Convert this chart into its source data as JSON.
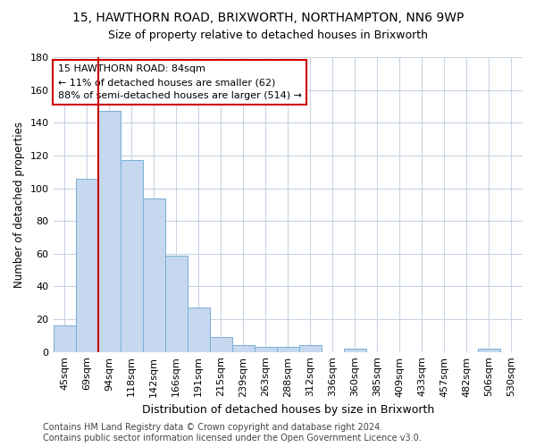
{
  "title1": "15, HAWTHORN ROAD, BRIXWORTH, NORTHAMPTON, NN6 9WP",
  "title2": "Size of property relative to detached houses in Brixworth",
  "xlabel": "Distribution of detached houses by size in Brixworth",
  "ylabel": "Number of detached properties",
  "categories": [
    "45sqm",
    "69sqm",
    "94sqm",
    "118sqm",
    "142sqm",
    "166sqm",
    "191sqm",
    "215sqm",
    "239sqm",
    "263sqm",
    "288sqm",
    "312sqm",
    "336sqm",
    "360sqm",
    "385sqm",
    "409sqm",
    "433sqm",
    "457sqm",
    "482sqm",
    "506sqm",
    "530sqm"
  ],
  "values": [
    16,
    106,
    147,
    117,
    94,
    59,
    27,
    9,
    4,
    3,
    3,
    4,
    0,
    2,
    0,
    0,
    0,
    0,
    0,
    2,
    0
  ],
  "bar_color": "#c5d8ef",
  "bar_edge_color": "#7aaed6",
  "vline_x": 2.0,
  "vline_color": "#cc0000",
  "annotation_text": "15 HAWTHORN ROAD: 84sqm\n← 11% of detached houses are smaller (62)\n88% of semi-detached houses are larger (514) →",
  "annotation_box_color": "#ffffff",
  "annotation_box_edge": "#cc0000",
  "ylim": [
    0,
    180
  ],
  "yticks": [
    0,
    20,
    40,
    60,
    80,
    100,
    120,
    140,
    160,
    180
  ],
  "footer": "Contains HM Land Registry data © Crown copyright and database right 2024.\nContains public sector information licensed under the Open Government Licence v3.0.",
  "bg_color": "#ffffff",
  "grid_color": "#c8d4e4",
  "title1_fontsize": 10,
  "title2_fontsize": 9,
  "xlabel_fontsize": 9,
  "ylabel_fontsize": 8.5,
  "footer_fontsize": 7,
  "tick_fontsize": 8,
  "annotation_fontsize": 8
}
